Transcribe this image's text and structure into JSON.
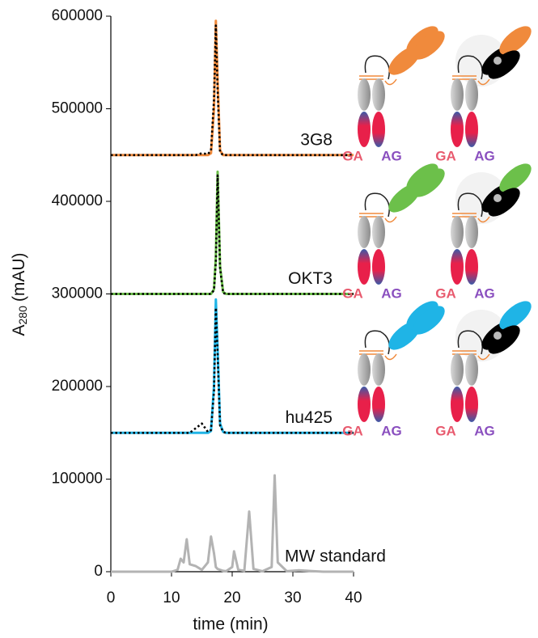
{
  "chart_data": {
    "type": "line",
    "ylabel": {
      "main": "A",
      "sub": "280",
      "unit": "(mAU)"
    },
    "xlabel": "time (min)",
    "xlim": [
      0,
      40
    ],
    "xticks": [
      0,
      10,
      20,
      30,
      40
    ],
    "ylim": [
      0,
      600000
    ],
    "yticks": [
      0,
      100000,
      200000,
      300000,
      400000,
      500000,
      600000
    ],
    "x": [
      0,
      10,
      11,
      11.5,
      12,
      12.5,
      13,
      14,
      15,
      16,
      16.5,
      17,
      17.3,
      17.6,
      18,
      18.5,
      19,
      20,
      20.3,
      21,
      22,
      22.8,
      23.5,
      25,
      26.5,
      27,
      27.5,
      29,
      31,
      35,
      40
    ],
    "series": [
      {
        "name": "3G8",
        "color": "#f08a3c",
        "style": "solid",
        "values": [
          450000,
          450000,
          450000,
          450000,
          450000,
          450000,
          450000,
          450000,
          450000,
          450000,
          452000,
          500000,
          595000,
          530000,
          455000,
          450000,
          450000,
          450000,
          450000,
          450000,
          450000,
          450000,
          450000,
          450000,
          450000,
          450000,
          450000,
          450000,
          450000,
          450000,
          450000
        ]
      },
      {
        "color": "#000000",
        "style": "dotted",
        "values": [
          450000,
          450000,
          450000,
          450000,
          450000,
          450000,
          450000,
          450000,
          452000,
          451000,
          455000,
          510000,
          590000,
          520000,
          453000,
          450000,
          450000,
          450000,
          450000,
          450000,
          450000,
          450000,
          450000,
          450000,
          450000,
          450000,
          450000,
          450000,
          450000,
          450000,
          450000
        ]
      },
      {
        "name": "OKT3",
        "color": "#6cc04a",
        "style": "solid",
        "values": [
          300000,
          300000,
          300000,
          300000,
          300000,
          300000,
          300000,
          300000,
          300000,
          300000,
          300000,
          305000,
          340000,
          432000,
          330000,
          302000,
          300000,
          300000,
          300000,
          300000,
          300000,
          300000,
          300000,
          300000,
          300000,
          300000,
          300000,
          300000,
          300000,
          300000,
          300000
        ]
      },
      {
        "color": "#000000",
        "style": "dotted",
        "values": [
          300000,
          300000,
          300000,
          300000,
          300000,
          300000,
          300000,
          300000,
          300000,
          300000,
          300000,
          304000,
          335000,
          428000,
          328000,
          301000,
          300000,
          300000,
          300000,
          300000,
          300000,
          300000,
          300000,
          300000,
          300000,
          300000,
          300000,
          300000,
          300000,
          300000,
          300000
        ]
      },
      {
        "name": "hu425",
        "color": "#1fb4e6",
        "style": "solid",
        "values": [
          150000,
          150000,
          150000,
          150000,
          150000,
          150000,
          150000,
          150000,
          150000,
          150000,
          152000,
          200000,
          294000,
          240000,
          160000,
          151000,
          150000,
          150000,
          150000,
          150000,
          150000,
          150000,
          150000,
          150000,
          150000,
          150000,
          150000,
          150000,
          150000,
          150000,
          150000
        ]
      },
      {
        "color": "#000000",
        "style": "dotted",
        "values": [
          150000,
          150000,
          150000,
          150000,
          150000,
          150000,
          150000,
          155000,
          160000,
          151000,
          153000,
          195000,
          285000,
          235000,
          158000,
          151000,
          150000,
          150000,
          150000,
          150000,
          150000,
          150000,
          150000,
          150000,
          150000,
          150000,
          150000,
          150000,
          150000,
          150000,
          150000
        ]
      },
      {
        "name": "MW standard",
        "color": "#b3b3b3",
        "style": "solid",
        "values": [
          0,
          0,
          2000,
          14000,
          10000,
          35000,
          8000,
          6000,
          2000,
          10000,
          38000,
          20000,
          5000,
          3000,
          2000,
          1000,
          500,
          5000,
          22000,
          2000,
          1000,
          65000,
          3000,
          500,
          5000,
          104000,
          10000,
          500,
          1500,
          0,
          0
        ]
      }
    ],
    "icons": [
      {
        "left": "GA",
        "right": "AG"
      },
      {
        "left": "GA",
        "right": "AG"
      },
      {
        "left": "GA",
        "right": "AG"
      },
      {
        "left": "GA",
        "right": "AG"
      },
      {
        "left": "GA",
        "right": "AG"
      },
      {
        "left": "GA",
        "right": "AG"
      }
    ]
  }
}
